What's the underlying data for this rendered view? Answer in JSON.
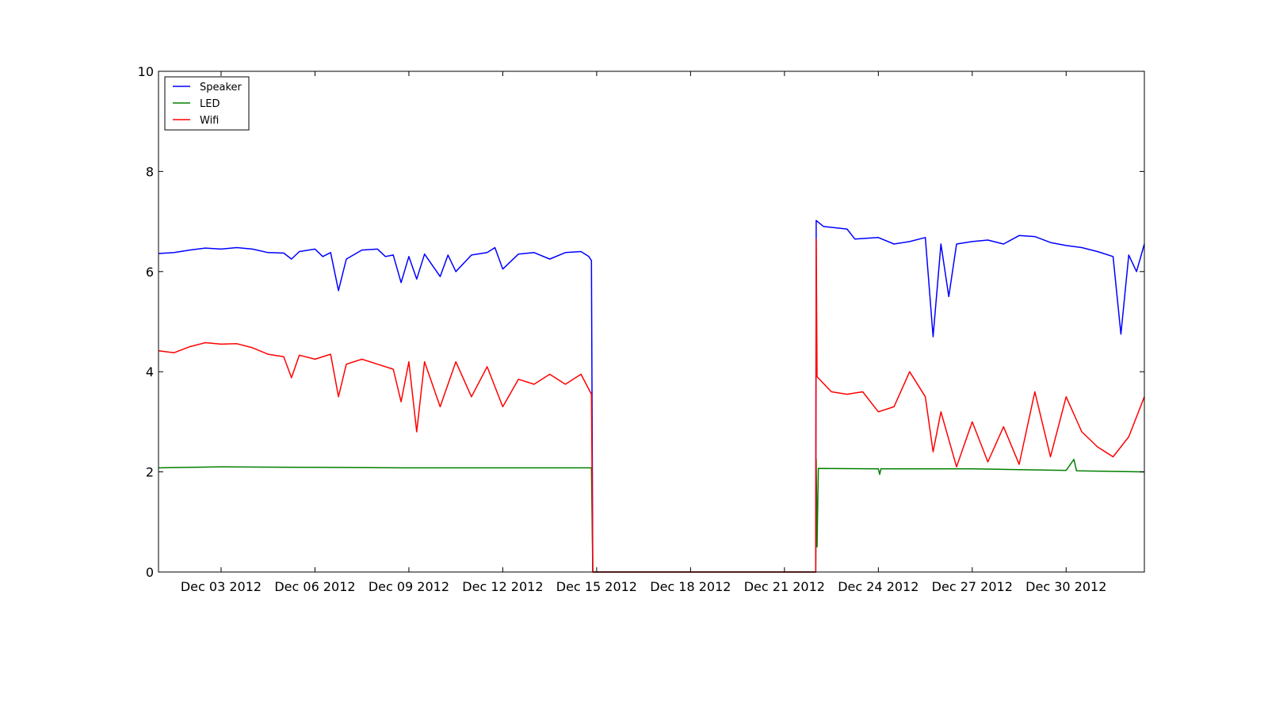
{
  "chart_data": {
    "type": "line",
    "title": "",
    "xlabel": "",
    "ylabel": "",
    "x_axis": {
      "type": "date",
      "range": [
        "2012-12-01T00:00",
        "2013-01-01T12:00"
      ],
      "ticks": [
        {
          "date": "2012-12-03",
          "label": "Dec 03 2012"
        },
        {
          "date": "2012-12-06",
          "label": "Dec 06 2012"
        },
        {
          "date": "2012-12-09",
          "label": "Dec 09 2012"
        },
        {
          "date": "2012-12-12",
          "label": "Dec 12 2012"
        },
        {
          "date": "2012-12-15",
          "label": "Dec 15 2012"
        },
        {
          "date": "2012-12-18",
          "label": "Dec 18 2012"
        },
        {
          "date": "2012-12-21",
          "label": "Dec 21 2012"
        },
        {
          "date": "2012-12-24",
          "label": "Dec 24 2012"
        },
        {
          "date": "2012-12-27",
          "label": "Dec 27 2012"
        },
        {
          "date": "2012-12-30",
          "label": "Dec 30 2012"
        }
      ]
    },
    "y_axis": {
      "range": [
        0,
        10
      ],
      "ticks": [
        {
          "value": 0,
          "label": "0"
        },
        {
          "value": 2,
          "label": "2"
        },
        {
          "value": 4,
          "label": "4"
        },
        {
          "value": 6,
          "label": "6"
        },
        {
          "value": 8,
          "label": "8"
        },
        {
          "value": 10,
          "label": "10"
        }
      ]
    },
    "grid": false,
    "legend": {
      "position": "top-left"
    },
    "series": [
      {
        "name": "Speaker",
        "color": "#0000ff",
        "points": [
          [
            "2012-12-01T00:00",
            6.36
          ],
          [
            "2012-12-01T12:00",
            6.38
          ],
          [
            "2012-12-02T00:00",
            6.43
          ],
          [
            "2012-12-02T12:00",
            6.47
          ],
          [
            "2012-12-03T00:00",
            6.45
          ],
          [
            "2012-12-03T12:00",
            6.48
          ],
          [
            "2012-12-04T00:00",
            6.45
          ],
          [
            "2012-12-04T12:00",
            6.38
          ],
          [
            "2012-12-05T00:00",
            6.37
          ],
          [
            "2012-12-05T06:00",
            6.25
          ],
          [
            "2012-12-05T12:00",
            6.4
          ],
          [
            "2012-12-06T00:00",
            6.45
          ],
          [
            "2012-12-06T06:00",
            6.3
          ],
          [
            "2012-12-06T12:00",
            6.38
          ],
          [
            "2012-12-06T18:00",
            5.62
          ],
          [
            "2012-12-07T00:00",
            6.25
          ],
          [
            "2012-12-07T12:00",
            6.43
          ],
          [
            "2012-12-08T00:00",
            6.45
          ],
          [
            "2012-12-08T06:00",
            6.3
          ],
          [
            "2012-12-08T12:00",
            6.33
          ],
          [
            "2012-12-08T18:00",
            5.78
          ],
          [
            "2012-12-09T00:00",
            6.3
          ],
          [
            "2012-12-09T06:00",
            5.85
          ],
          [
            "2012-12-09T12:00",
            6.35
          ],
          [
            "2012-12-10T00:00",
            5.9
          ],
          [
            "2012-12-10T06:00",
            6.33
          ],
          [
            "2012-12-10T12:00",
            6.0
          ],
          [
            "2012-12-11T00:00",
            6.33
          ],
          [
            "2012-12-11T12:00",
            6.38
          ],
          [
            "2012-12-11T18:00",
            6.48
          ],
          [
            "2012-12-12T00:00",
            6.05
          ],
          [
            "2012-12-12T12:00",
            6.35
          ],
          [
            "2012-12-13T00:00",
            6.38
          ],
          [
            "2012-12-13T12:00",
            6.25
          ],
          [
            "2012-12-14T00:00",
            6.38
          ],
          [
            "2012-12-14T12:00",
            6.4
          ],
          [
            "2012-12-14T18:00",
            6.3
          ],
          [
            "2012-12-14T20:00",
            6.22
          ],
          [
            "2012-12-14T21:00",
            0.0
          ],
          [
            "2012-12-22T00:00",
            0.0
          ],
          [
            "2012-12-22T00:20",
            7.02
          ],
          [
            "2012-12-22T06:00",
            6.9
          ],
          [
            "2012-12-23T00:00",
            6.85
          ],
          [
            "2012-12-23T06:00",
            6.65
          ],
          [
            "2012-12-24T00:00",
            6.68
          ],
          [
            "2012-12-24T12:00",
            6.55
          ],
          [
            "2012-12-25T00:00",
            6.6
          ],
          [
            "2012-12-25T12:00",
            6.68
          ],
          [
            "2012-12-25T18:00",
            4.7
          ],
          [
            "2012-12-26T00:00",
            6.55
          ],
          [
            "2012-12-26T06:00",
            5.5
          ],
          [
            "2012-12-26T12:00",
            6.55
          ],
          [
            "2012-12-27T00:00",
            6.6
          ],
          [
            "2012-12-27T12:00",
            6.63
          ],
          [
            "2012-12-28T00:00",
            6.55
          ],
          [
            "2012-12-28T12:00",
            6.72
          ],
          [
            "2012-12-29T00:00",
            6.7
          ],
          [
            "2012-12-29T12:00",
            6.58
          ],
          [
            "2012-12-30T00:00",
            6.52
          ],
          [
            "2012-12-30T12:00",
            6.48
          ],
          [
            "2012-12-31T00:00",
            6.4
          ],
          [
            "2012-12-31T12:00",
            6.3
          ],
          [
            "2012-12-31T18:00",
            4.75
          ],
          [
            "2013-01-01T00:00",
            6.33
          ],
          [
            "2013-01-01T06:00",
            6.0
          ],
          [
            "2013-01-01T12:00",
            6.55
          ]
        ]
      },
      {
        "name": "LED",
        "color": "#008000",
        "points": [
          [
            "2012-12-01T00:00",
            2.08
          ],
          [
            "2012-12-03T00:00",
            2.1
          ],
          [
            "2012-12-06T00:00",
            2.09
          ],
          [
            "2012-12-09T00:00",
            2.08
          ],
          [
            "2012-12-12T00:00",
            2.08
          ],
          [
            "2012-12-14T20:00",
            2.08
          ],
          [
            "2012-12-14T21:00",
            0.0
          ],
          [
            "2012-12-22T00:00",
            0.0
          ],
          [
            "2012-12-22T00:20",
            2.25
          ],
          [
            "2012-12-22T01:00",
            0.5
          ],
          [
            "2012-12-22T02:00",
            2.07
          ],
          [
            "2012-12-24T00:00",
            2.06
          ],
          [
            "2012-12-24T01:00",
            1.95
          ],
          [
            "2012-12-24T02:00",
            2.06
          ],
          [
            "2012-12-27T00:00",
            2.06
          ],
          [
            "2012-12-30T00:00",
            2.03
          ],
          [
            "2012-12-30T06:00",
            2.25
          ],
          [
            "2012-12-30T08:00",
            2.02
          ],
          [
            "2013-01-01T12:00",
            2.0
          ]
        ]
      },
      {
        "name": "Wifi",
        "color": "#ff0000",
        "points": [
          [
            "2012-12-01T00:00",
            4.42
          ],
          [
            "2012-12-01T12:00",
            4.38
          ],
          [
            "2012-12-02T00:00",
            4.5
          ],
          [
            "2012-12-02T12:00",
            4.58
          ],
          [
            "2012-12-03T00:00",
            4.55
          ],
          [
            "2012-12-03T12:00",
            4.56
          ],
          [
            "2012-12-04T00:00",
            4.48
          ],
          [
            "2012-12-04T12:00",
            4.35
          ],
          [
            "2012-12-05T00:00",
            4.3
          ],
          [
            "2012-12-05T06:00",
            3.88
          ],
          [
            "2012-12-05T12:00",
            4.33
          ],
          [
            "2012-12-06T00:00",
            4.25
          ],
          [
            "2012-12-06T12:00",
            4.35
          ],
          [
            "2012-12-06T18:00",
            3.5
          ],
          [
            "2012-12-07T00:00",
            4.15
          ],
          [
            "2012-12-07T12:00",
            4.25
          ],
          [
            "2012-12-08T00:00",
            4.15
          ],
          [
            "2012-12-08T12:00",
            4.05
          ],
          [
            "2012-12-08T18:00",
            3.4
          ],
          [
            "2012-12-09T00:00",
            4.2
          ],
          [
            "2012-12-09T06:00",
            2.8
          ],
          [
            "2012-12-09T12:00",
            4.2
          ],
          [
            "2012-12-10T00:00",
            3.3
          ],
          [
            "2012-12-10T12:00",
            4.2
          ],
          [
            "2012-12-11T00:00",
            3.5
          ],
          [
            "2012-12-11T12:00",
            4.1
          ],
          [
            "2012-12-12T00:00",
            3.3
          ],
          [
            "2012-12-12T12:00",
            3.85
          ],
          [
            "2012-12-13T00:00",
            3.75
          ],
          [
            "2012-12-13T12:00",
            3.95
          ],
          [
            "2012-12-14T00:00",
            3.75
          ],
          [
            "2012-12-14T12:00",
            3.95
          ],
          [
            "2012-12-14T20:00",
            3.55
          ],
          [
            "2012-12-14T21:00",
            0.0
          ],
          [
            "2012-12-22T00:00",
            0.0
          ],
          [
            "2012-12-22T00:20",
            6.65
          ],
          [
            "2012-12-22T01:00",
            3.9
          ],
          [
            "2012-12-22T12:00",
            3.6
          ],
          [
            "2012-12-23T00:00",
            3.55
          ],
          [
            "2012-12-23T12:00",
            3.6
          ],
          [
            "2012-12-24T00:00",
            3.2
          ],
          [
            "2012-12-24T12:00",
            3.3
          ],
          [
            "2012-12-25T00:00",
            4.0
          ],
          [
            "2012-12-25T12:00",
            3.5
          ],
          [
            "2012-12-25T18:00",
            2.4
          ],
          [
            "2012-12-26T00:00",
            3.2
          ],
          [
            "2012-12-26T12:00",
            2.1
          ],
          [
            "2012-12-27T00:00",
            3.0
          ],
          [
            "2012-12-27T12:00",
            2.2
          ],
          [
            "2012-12-28T00:00",
            2.9
          ],
          [
            "2012-12-28T12:00",
            2.15
          ],
          [
            "2012-12-29T00:00",
            3.6
          ],
          [
            "2012-12-29T12:00",
            2.3
          ],
          [
            "2012-12-30T00:00",
            3.5
          ],
          [
            "2012-12-30T12:00",
            2.8
          ],
          [
            "2012-12-31T00:00",
            2.5
          ],
          [
            "2012-12-31T12:00",
            2.3
          ],
          [
            "2013-01-01T00:00",
            2.7
          ],
          [
            "2013-01-01T12:00",
            3.5
          ]
        ]
      }
    ]
  }
}
